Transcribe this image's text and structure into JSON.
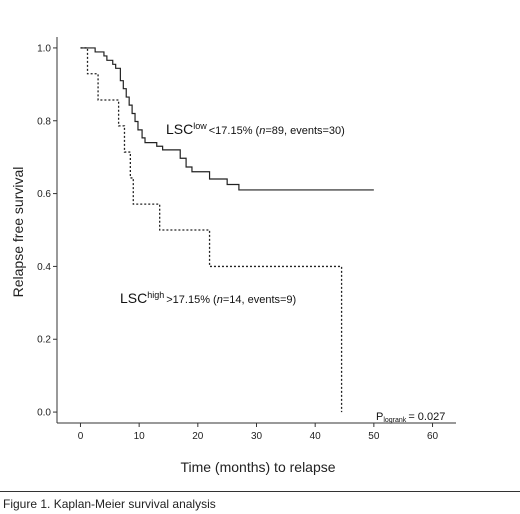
{
  "chart_data": {
    "type": "line",
    "title": "",
    "xlabel": "Time (months) to relapse",
    "ylabel": "Relapse free survival",
    "xlim": [
      -4,
      64
    ],
    "ylim": [
      -0.03,
      1.03
    ],
    "x_ticks": [
      "0",
      "10",
      "20",
      "30",
      "40",
      "50",
      "60"
    ],
    "y_ticks": [
      "0.0",
      "0.2",
      "0.4",
      "0.6",
      "0.8",
      "1.0"
    ],
    "grid": false,
    "series": [
      {
        "name": "LSC low",
        "line_style": "solid",
        "label_main": "LSC",
        "label_sup": "low",
        "label_rest_a": "<17.15% (",
        "label_n": "n",
        "label_rest_b": "=89, events=30)",
        "steps": [
          [
            0,
            1.0
          ],
          [
            2.5,
            0.989
          ],
          [
            4,
            0.978
          ],
          [
            4.5,
            0.966
          ],
          [
            5.5,
            0.955
          ],
          [
            6,
            0.944
          ],
          [
            6.8,
            0.91
          ],
          [
            7.3,
            0.888
          ],
          [
            7.8,
            0.865
          ],
          [
            8.3,
            0.843
          ],
          [
            8.8,
            0.82
          ],
          [
            9.3,
            0.798
          ],
          [
            9.8,
            0.775
          ],
          [
            10.5,
            0.753
          ],
          [
            11,
            0.74
          ],
          [
            13,
            0.73
          ],
          [
            14,
            0.72
          ],
          [
            17,
            0.697
          ],
          [
            18,
            0.673
          ],
          [
            19,
            0.66
          ],
          [
            22,
            0.64
          ],
          [
            25,
            0.625
          ],
          [
            27,
            0.61
          ],
          [
            50,
            0.61
          ]
        ]
      },
      {
        "name": "LSC high",
        "line_style": "dotted",
        "label_main": "LSC",
        "label_sup": "high",
        "label_rest_a": ">17.15% (",
        "label_n": "n",
        "label_rest_b": "=14, events=9)",
        "steps": [
          [
            0,
            1.0
          ],
          [
            1.2,
            0.929
          ],
          [
            3,
            0.857
          ],
          [
            6.5,
            0.786
          ],
          [
            7.5,
            0.714
          ],
          [
            8.5,
            0.643
          ],
          [
            9,
            0.571
          ],
          [
            13.5,
            0.5
          ],
          [
            22,
            0.4
          ],
          [
            44.5,
            0.4
          ],
          [
            44.5,
            0.0
          ]
        ]
      }
    ],
    "p_value": {
      "label": "P",
      "sub": "logrank",
      "value": "= 0.027"
    }
  },
  "caption": "Figure 1. Kaplan-Meier survival analysis"
}
